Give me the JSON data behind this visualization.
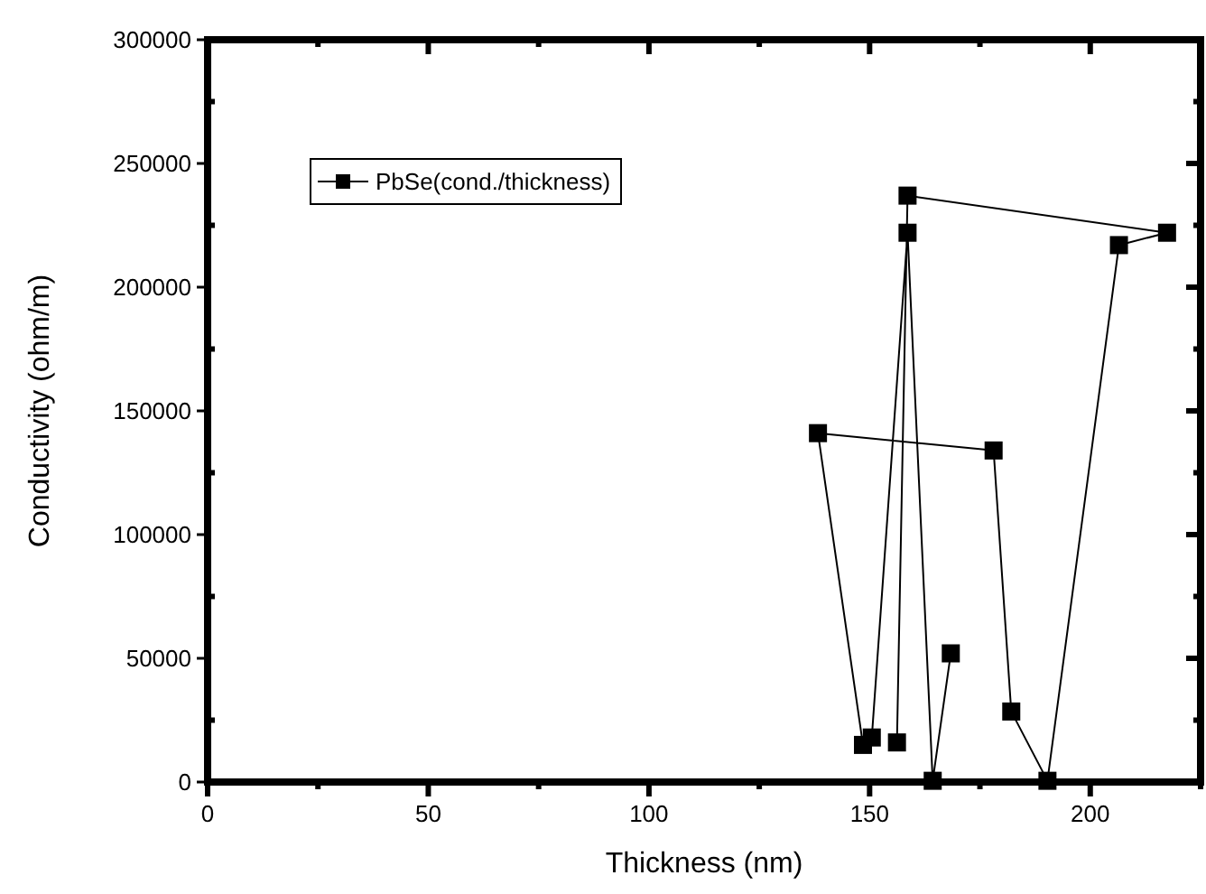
{
  "chart_data": {
    "type": "line",
    "xlabel": "Thickness (nm)",
    "ylabel": "Conductivity (ohm/m)",
    "xlim": [
      0,
      225
    ],
    "ylim": [
      0,
      300000
    ],
    "xticks": [
      0,
      {
        "value": 25,
        "label": null
      },
      50,
      {
        "value": 75,
        "label": null
      },
      100,
      {
        "value": 125,
        "label": null
      },
      150,
      {
        "value": 175,
        "label": null
      },
      200,
      {
        "value": 225,
        "label": null
      }
    ],
    "yticks": [
      0,
      {
        "value": 25000,
        "label": null
      },
      50000,
      {
        "value": 75000,
        "label": null
      },
      100000,
      {
        "value": 125000,
        "label": null
      },
      150000,
      {
        "value": 175000,
        "label": null
      },
      200000,
      {
        "value": 225000,
        "label": null
      },
      250000,
      {
        "value": 275000,
        "label": null
      },
      300000
    ],
    "series": [
      {
        "name": "PbSe(cond./thickness)",
        "color": "#000000",
        "x": [
          156.2,
          158.6,
          217.4,
          206.5,
          190.3,
          182.1,
          178.1,
          138.3,
          148.5,
          150.5,
          158.6,
          164.3,
          168.4
        ],
        "values": [
          16000,
          237000,
          222000,
          217000,
          500,
          28500,
          134000,
          141000,
          15000,
          18000,
          222000,
          500,
          52000
        ]
      }
    ],
    "marker": "square",
    "line_style": "solid",
    "legend": "top left",
    "grid": false
  }
}
